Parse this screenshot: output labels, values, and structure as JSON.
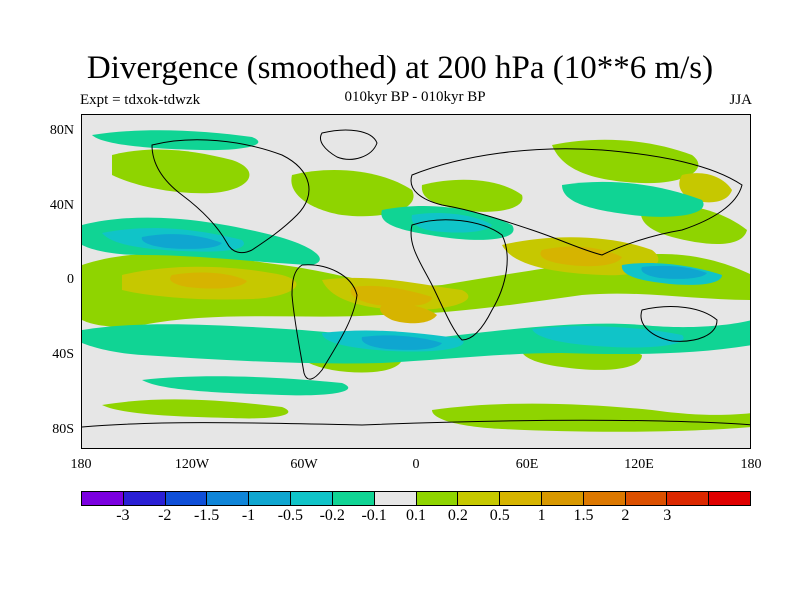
{
  "title": "Divergence (smoothed) at 200 hPa (10**6 m/s)",
  "subtitle": "010kyr BP - 010kyr BP",
  "experiment": "Expt = tdxok-tdwzk",
  "season": "JJA",
  "y_axis_labels": [
    "80N",
    "40N",
    "0",
    "40S",
    "80S"
  ],
  "x_axis_labels": [
    "180",
    "120W",
    "60W",
    "0",
    "60E",
    "120E",
    "180"
  ],
  "colorbar": {
    "colors": [
      "#7b00e0",
      "#2a1fd4",
      "#0f4fd8",
      "#0f85d8",
      "#0fa6d0",
      "#10c4c8",
      "#10d494",
      "#e6e6e6",
      "#8fd400",
      "#c6c800",
      "#d6b400",
      "#d89800",
      "#dc7800",
      "#dc5000",
      "#dc2800",
      "#e00000"
    ],
    "labels": [
      "-3",
      "-2",
      "-1.5",
      "-1",
      "-0.5",
      "-0.2",
      "-0.1",
      "0.1",
      "0.2",
      "0.5",
      "1",
      "1.5",
      "2",
      "3"
    ]
  }
}
